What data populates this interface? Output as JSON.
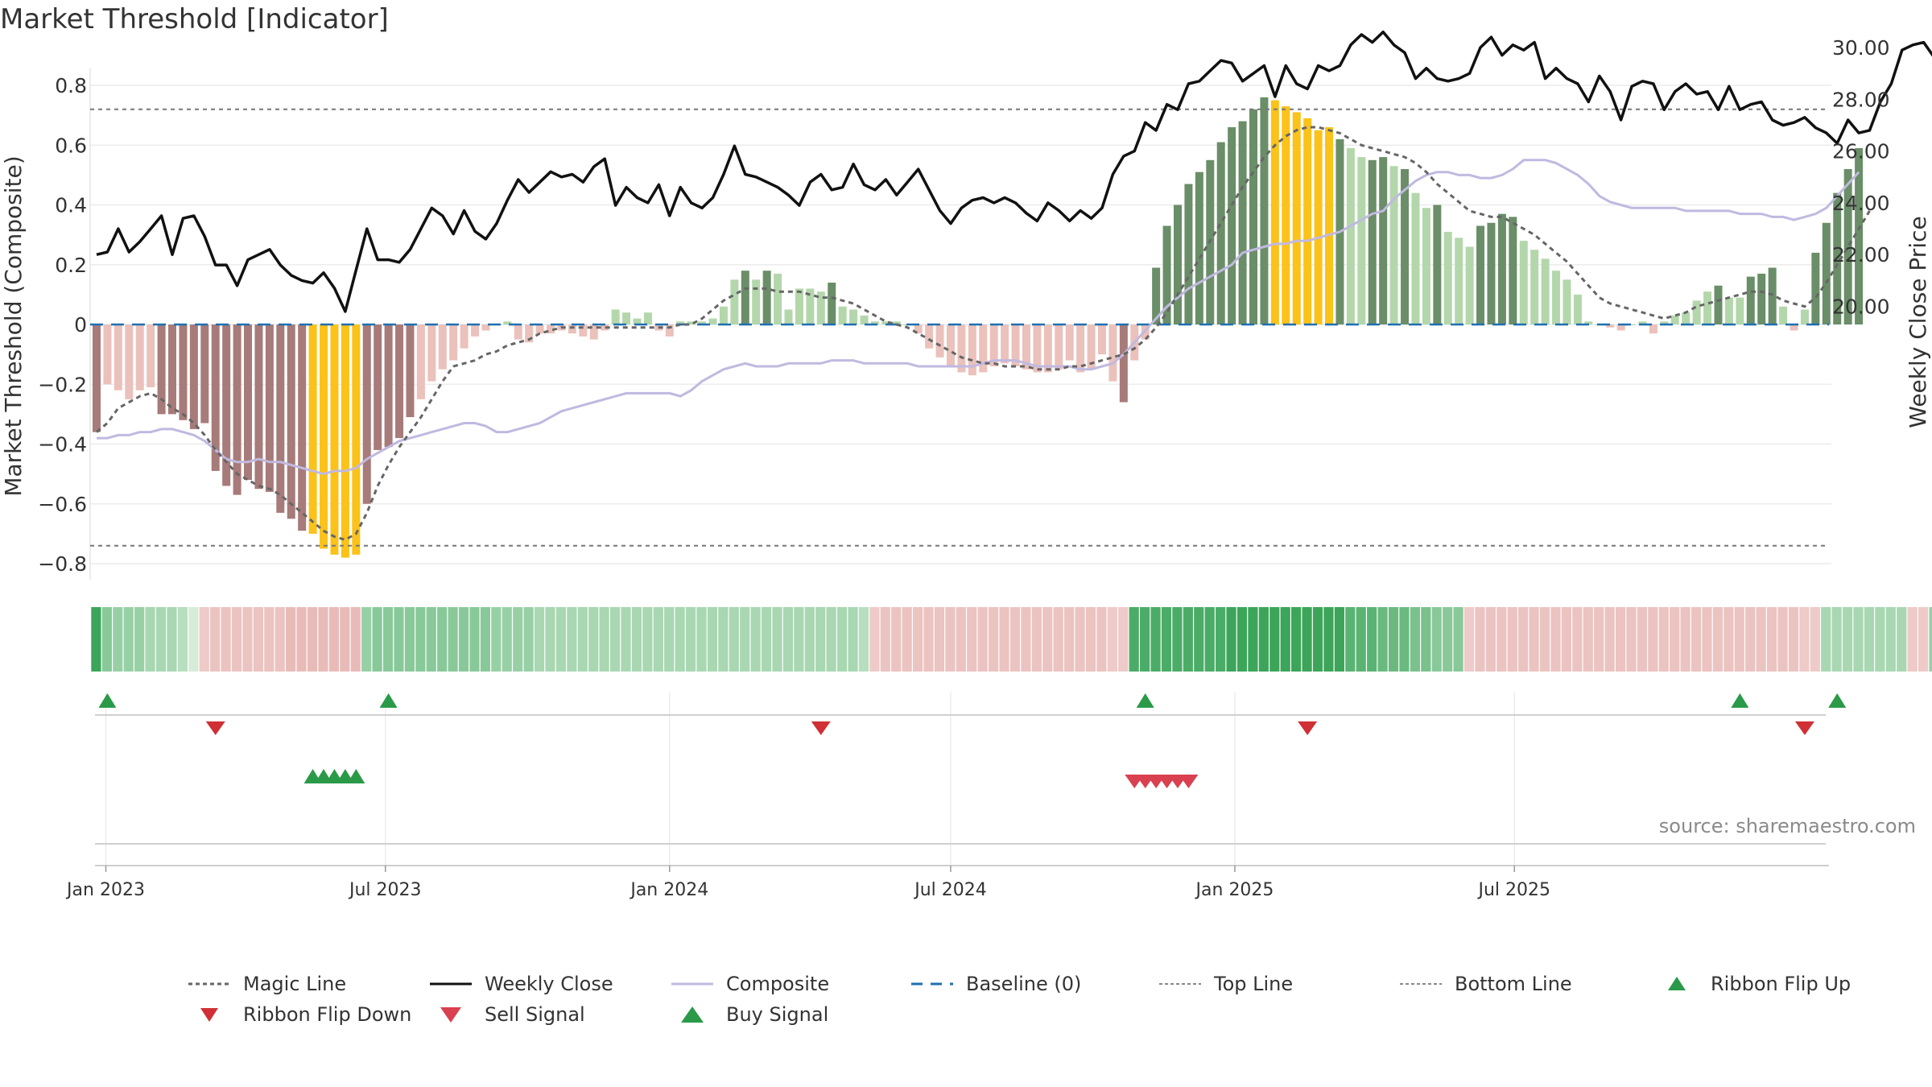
{
  "title": "Market Threshold [Indicator]",
  "source": "source: sharemaestro.com",
  "colors": {
    "strong_bull": "#6a8e68",
    "weak_bull": "#b3d7ab",
    "strong_bear": "#a77b79",
    "weak_bear": "#ebc1bb",
    "extreme": "#fbc219",
    "price": "#111111",
    "composite": "#c0b9e0",
    "magic": "#666666",
    "baseline": "#1f6fb0",
    "buy": "#2a9a48",
    "sell": "#d94050"
  },
  "chart_data": {
    "type": "bar",
    "ylabel": "Market Threshold (Composite)",
    "y2label": "Weekly Close Price",
    "ylim": [
      -0.85,
      0.8
    ],
    "y2lim": [
      19.0,
      31.0
    ],
    "yticks": [
      "0.8",
      "0.6",
      "0.4",
      "0.2",
      "0",
      "−0.2",
      "−0.4",
      "−0.6",
      "−0.8"
    ],
    "y2ticks": [
      "30.00",
      "28.00",
      "26.00",
      "24.00",
      "22.00",
      "20.00"
    ],
    "xticks": [
      "Jan 2023",
      "Jul 2023",
      "Jan 2024",
      "Jul 2024",
      "Jan 2025",
      "Jul 2025"
    ],
    "top_line": 0.72,
    "bottom_line": -0.74,
    "x_start": "2022-12-26",
    "composite": [
      -0.36,
      -0.2,
      -0.22,
      -0.25,
      -0.22,
      -0.21,
      -0.3,
      -0.3,
      -0.32,
      -0.35,
      -0.33,
      -0.49,
      -0.54,
      -0.57,
      -0.52,
      -0.55,
      -0.56,
      -0.63,
      -0.65,
      -0.69,
      -0.7,
      -0.75,
      -0.77,
      -0.78,
      -0.77,
      -0.6,
      -0.42,
      -0.41,
      -0.38,
      -0.31,
      -0.25,
      -0.19,
      -0.15,
      -0.12,
      -0.08,
      -0.04,
      -0.02,
      0.0,
      0.01,
      -0.05,
      -0.06,
      -0.03,
      -0.03,
      -0.02,
      -0.03,
      -0.04,
      -0.05,
      -0.02,
      0.05,
      0.04,
      0.02,
      0.04,
      -0.02,
      -0.04,
      0.01,
      0.01,
      0.01,
      0.02,
      0.06,
      0.15,
      0.18,
      0.15,
      0.18,
      0.17,
      0.05,
      0.12,
      0.12,
      0.11,
      0.14,
      0.06,
      0.05,
      0.03,
      0.01,
      0.01,
      0.01,
      0.0,
      -0.03,
      -0.08,
      -0.11,
      -0.14,
      -0.16,
      -0.17,
      -0.16,
      -0.14,
      -0.13,
      -0.14,
      -0.15,
      -0.16,
      -0.16,
      -0.15,
      -0.12,
      -0.16,
      -0.15,
      -0.1,
      -0.19,
      -0.26,
      -0.12,
      -0.05,
      0.19,
      0.33,
      0.4,
      0.47,
      0.51,
      0.55,
      0.61,
      0.66,
      0.68,
      0.72,
      0.76,
      0.75,
      0.73,
      0.71,
      0.69,
      0.65,
      0.66,
      0.62,
      0.59,
      0.56,
      0.55,
      0.56,
      0.53,
      0.52,
      0.44,
      0.39,
      0.4,
      0.31,
      0.29,
      0.26,
      0.33,
      0.34,
      0.37,
      0.36,
      0.28,
      0.25,
      0.22,
      0.18,
      0.15,
      0.1,
      0.01,
      0.0,
      -0.01,
      -0.02,
      0.0,
      0.01,
      -0.03,
      0.01,
      0.03,
      0.04,
      0.08,
      0.11,
      0.13,
      0.09,
      0.09,
      0.16,
      0.17,
      0.19,
      0.06,
      -0.02,
      0.05,
      0.24,
      0.34,
      0.44,
      0.52,
      0.59
    ],
    "magic_line": [
      -0.36,
      -0.33,
      -0.28,
      -0.26,
      -0.24,
      -0.23,
      -0.25,
      -0.28,
      -0.3,
      -0.33,
      -0.37,
      -0.42,
      -0.46,
      -0.5,
      -0.52,
      -0.54,
      -0.55,
      -0.57,
      -0.6,
      -0.63,
      -0.66,
      -0.69,
      -0.71,
      -0.72,
      -0.7,
      -0.63,
      -0.54,
      -0.47,
      -0.41,
      -0.36,
      -0.31,
      -0.25,
      -0.19,
      -0.14,
      -0.13,
      -0.12,
      -0.1,
      -0.09,
      -0.07,
      -0.06,
      -0.05,
      -0.03,
      -0.02,
      -0.01,
      -0.01,
      -0.01,
      -0.01,
      -0.01,
      -0.01,
      -0.01,
      -0.01,
      -0.01,
      -0.01,
      -0.01,
      0.0,
      0.0,
      0.02,
      0.05,
      0.08,
      0.1,
      0.12,
      0.12,
      0.12,
      0.11,
      0.11,
      0.11,
      0.1,
      0.09,
      0.09,
      0.08,
      0.07,
      0.05,
      0.03,
      0.01,
      0.0,
      -0.01,
      -0.03,
      -0.05,
      -0.07,
      -0.09,
      -0.11,
      -0.12,
      -0.13,
      -0.13,
      -0.14,
      -0.14,
      -0.14,
      -0.15,
      -0.15,
      -0.15,
      -0.14,
      -0.14,
      -0.13,
      -0.12,
      -0.11,
      -0.1,
      -0.08,
      -0.05,
      -0.01,
      0.04,
      0.1,
      0.16,
      0.22,
      0.28,
      0.34,
      0.4,
      0.46,
      0.51,
      0.56,
      0.6,
      0.63,
      0.65,
      0.66,
      0.66,
      0.65,
      0.64,
      0.62,
      0.6,
      0.59,
      0.58,
      0.57,
      0.56,
      0.54,
      0.51,
      0.47,
      0.44,
      0.41,
      0.38,
      0.37,
      0.36,
      0.36,
      0.34,
      0.32,
      0.3,
      0.27,
      0.24,
      0.21,
      0.17,
      0.13,
      0.09,
      0.07,
      0.06,
      0.05,
      0.04,
      0.03,
      0.02,
      0.03,
      0.04,
      0.06,
      0.07,
      0.08,
      0.09,
      0.1,
      0.11,
      0.11,
      0.1,
      0.08,
      0.07,
      0.06,
      0.09,
      0.14,
      0.2,
      0.26,
      0.32,
      0.38
    ],
    "composite_line": [
      -0.38,
      -0.38,
      -0.37,
      -0.37,
      -0.36,
      -0.36,
      -0.35,
      -0.35,
      -0.36,
      -0.37,
      -0.39,
      -0.42,
      -0.45,
      -0.46,
      -0.46,
      -0.45,
      -0.46,
      -0.46,
      -0.47,
      -0.48,
      -0.49,
      -0.5,
      -0.49,
      -0.49,
      -0.48,
      -0.45,
      -0.43,
      -0.41,
      -0.39,
      -0.38,
      -0.37,
      -0.36,
      -0.35,
      -0.34,
      -0.33,
      -0.33,
      -0.34,
      -0.36,
      -0.36,
      -0.35,
      -0.34,
      -0.33,
      -0.31,
      -0.29,
      -0.28,
      -0.27,
      -0.26,
      -0.25,
      -0.24,
      -0.23,
      -0.23,
      -0.23,
      -0.23,
      -0.23,
      -0.24,
      -0.22,
      -0.19,
      -0.17,
      -0.15,
      -0.14,
      -0.13,
      -0.14,
      -0.14,
      -0.14,
      -0.13,
      -0.13,
      -0.13,
      -0.13,
      -0.12,
      -0.12,
      -0.12,
      -0.13,
      -0.13,
      -0.13,
      -0.13,
      -0.13,
      -0.14,
      -0.14,
      -0.14,
      -0.14,
      -0.14,
      -0.14,
      -0.13,
      -0.12,
      -0.12,
      -0.12,
      -0.13,
      -0.14,
      -0.14,
      -0.14,
      -0.14,
      -0.15,
      -0.15,
      -0.14,
      -0.13,
      -0.1,
      -0.06,
      -0.02,
      0.02,
      0.06,
      0.09,
      0.12,
      0.14,
      0.16,
      0.18,
      0.2,
      0.24,
      0.25,
      0.26,
      0.27,
      0.27,
      0.28,
      0.28,
      0.29,
      0.3,
      0.31,
      0.33,
      0.35,
      0.37,
      0.38,
      0.42,
      0.45,
      0.48,
      0.5,
      0.51,
      0.51,
      0.5,
      0.5,
      0.49,
      0.49,
      0.5,
      0.52,
      0.55,
      0.55,
      0.55,
      0.54,
      0.52,
      0.5,
      0.47,
      0.43,
      0.41,
      0.4,
      0.39,
      0.39,
      0.39,
      0.39,
      0.39,
      0.38,
      0.38,
      0.38,
      0.38,
      0.38,
      0.37,
      0.37,
      0.37,
      0.36,
      0.36,
      0.35,
      0.36,
      0.37,
      0.39,
      0.43,
      0.47,
      0.51
    ],
    "weekly_close": [
      22.0,
      22.1,
      23.0,
      22.1,
      22.5,
      23.0,
      23.5,
      22.0,
      23.4,
      23.5,
      22.7,
      21.6,
      21.6,
      20.8,
      21.8,
      22.0,
      22.2,
      21.6,
      21.2,
      21.0,
      20.9,
      21.3,
      20.7,
      19.8,
      21.4,
      23.0,
      21.8,
      21.8,
      21.7,
      22.2,
      23.0,
      23.8,
      23.5,
      22.8,
      23.7,
      22.9,
      22.6,
      23.2,
      24.1,
      24.9,
      24.4,
      24.8,
      25.2,
      25.0,
      25.1,
      24.8,
      25.4,
      25.7,
      23.9,
      24.6,
      24.2,
      24.0,
      24.7,
      23.5,
      24.6,
      24.0,
      23.8,
      24.2,
      25.1,
      26.2,
      25.1,
      25.0,
      24.8,
      24.6,
      24.3,
      23.9,
      24.8,
      25.1,
      24.5,
      24.6,
      25.5,
      24.7,
      24.5,
      24.9,
      24.3,
      24.8,
      25.3,
      24.5,
      23.7,
      23.2,
      23.8,
      24.1,
      24.2,
      24.0,
      24.2,
      24.0,
      23.6,
      23.3,
      24.0,
      23.7,
      23.3,
      23.7,
      23.4,
      23.8,
      25.1,
      25.8,
      26.0,
      27.1,
      26.8,
      27.8,
      27.6,
      28.6,
      28.7,
      29.1,
      29.5,
      29.4,
      28.7,
      29.0,
      29.3,
      28.1,
      29.3,
      28.6,
      28.4,
      29.3,
      29.1,
      29.3,
      30.1,
      30.5,
      30.2,
      30.6,
      30.1,
      29.8,
      28.8,
      29.2,
      28.8,
      28.7,
      28.8,
      29.0,
      30.0,
      30.4,
      29.7,
      30.1,
      29.9,
      30.2,
      28.8,
      29.2,
      28.8,
      28.6,
      27.9,
      28.9,
      28.3,
      27.2,
      28.5,
      28.7,
      28.6,
      27.6,
      28.3,
      28.6,
      28.2,
      28.3,
      27.6,
      28.5,
      27.6,
      27.8,
      27.9,
      27.2,
      27.0,
      27.1,
      27.3,
      26.9,
      26.7,
      26.3,
      27.2,
      26.7,
      26.8,
      27.9,
      28.6,
      29.9,
      30.1,
      30.2,
      29.6
    ],
    "extreme_weeks": [
      20,
      21,
      22,
      23,
      24,
      109,
      110,
      111,
      112,
      113,
      114
    ],
    "ribbon": [
      1,
      0.5,
      0.4,
      0.4,
      0.4,
      0.3,
      0.3,
      0.3,
      0.2,
      0,
      -0.2,
      -0.3,
      -0.3,
      -0.3,
      -0.3,
      -0.3,
      -0.3,
      -0.3,
      -0.4,
      -0.4,
      -0.4,
      -0.4,
      -0.4,
      -0.4,
      -0.4,
      0.4,
      0.5,
      0.5,
      0.5,
      0.5,
      0.5,
      0.5,
      0.5,
      0.5,
      0.5,
      0.5,
      0.5,
      0.4,
      0.4,
      0.4,
      0.4,
      0.3,
      0.3,
      0.3,
      0.3,
      0.3,
      0.3,
      0.3,
      0.3,
      0.3,
      0.3,
      0.3,
      0.3,
      0.3,
      0.3,
      0.3,
      0.3,
      0.3,
      0.3,
      0.3,
      0.3,
      0.3,
      0.3,
      0.3,
      0.3,
      0.3,
      0.3,
      0.3,
      0.3,
      0.3,
      0.3,
      0.2,
      -0.2,
      -0.3,
      -0.3,
      -0.3,
      -0.3,
      -0.3,
      -0.3,
      -0.3,
      -0.3,
      -0.3,
      -0.3,
      -0.3,
      -0.3,
      -0.3,
      -0.3,
      -0.3,
      -0.3,
      -0.3,
      -0.3,
      -0.3,
      -0.3,
      -0.3,
      -0.2,
      -0.2,
      0.9,
      0.9,
      0.9,
      0.9,
      0.9,
      0.9,
      0.9,
      0.9,
      0.9,
      1,
      1,
      1,
      1,
      1,
      1,
      1,
      1,
      1,
      1,
      1,
      0.8,
      0.8,
      0.8,
      0.7,
      0.7,
      0.7,
      0.6,
      0.6,
      0.5,
      0.5,
      0.5,
      -0.2,
      -0.3,
      -0.3,
      -0.3,
      -0.3,
      -0.3,
      -0.3,
      -0.3,
      -0.3,
      -0.3,
      -0.3,
      -0.3,
      -0.3,
      -0.3,
      -0.3,
      -0.3,
      -0.3,
      -0.3,
      -0.3,
      -0.3,
      -0.3,
      -0.3,
      -0.3,
      -0.3,
      -0.3,
      -0.3,
      -0.3,
      -0.3,
      -0.3,
      -0.3,
      -0.3,
      -0.2,
      -0.2,
      0.3,
      0.3,
      0.3,
      0.3,
      0.3,
      0.3,
      0.3,
      0.3,
      -0.2,
      -0.2,
      0.4,
      0.4,
      0.5,
      0.6
    ],
    "ribbon_flip_up": [
      1,
      27,
      97,
      152,
      161
    ],
    "ribbon_flip_down": [
      11,
      67,
      112,
      158
    ],
    "buy_signal": [
      20,
      21,
      22,
      23,
      24
    ],
    "sell_signal": [
      96,
      97,
      98,
      99,
      100,
      101
    ]
  },
  "legend": [
    {
      "key": "magic",
      "label": "Magic Line"
    },
    {
      "key": "close",
      "label": "Weekly Close"
    },
    {
      "key": "composite",
      "label": "Composite"
    },
    {
      "key": "baseline",
      "label": "Baseline (0)"
    },
    {
      "key": "top",
      "label": "Top Line"
    },
    {
      "key": "bottom",
      "label": "Bottom Line"
    },
    {
      "key": "flip_up",
      "label": "Ribbon Flip Up"
    },
    {
      "key": "flip_down",
      "label": "Ribbon Flip Down"
    },
    {
      "key": "sell",
      "label": "Sell Signal"
    },
    {
      "key": "buy",
      "label": "Buy Signal"
    }
  ]
}
